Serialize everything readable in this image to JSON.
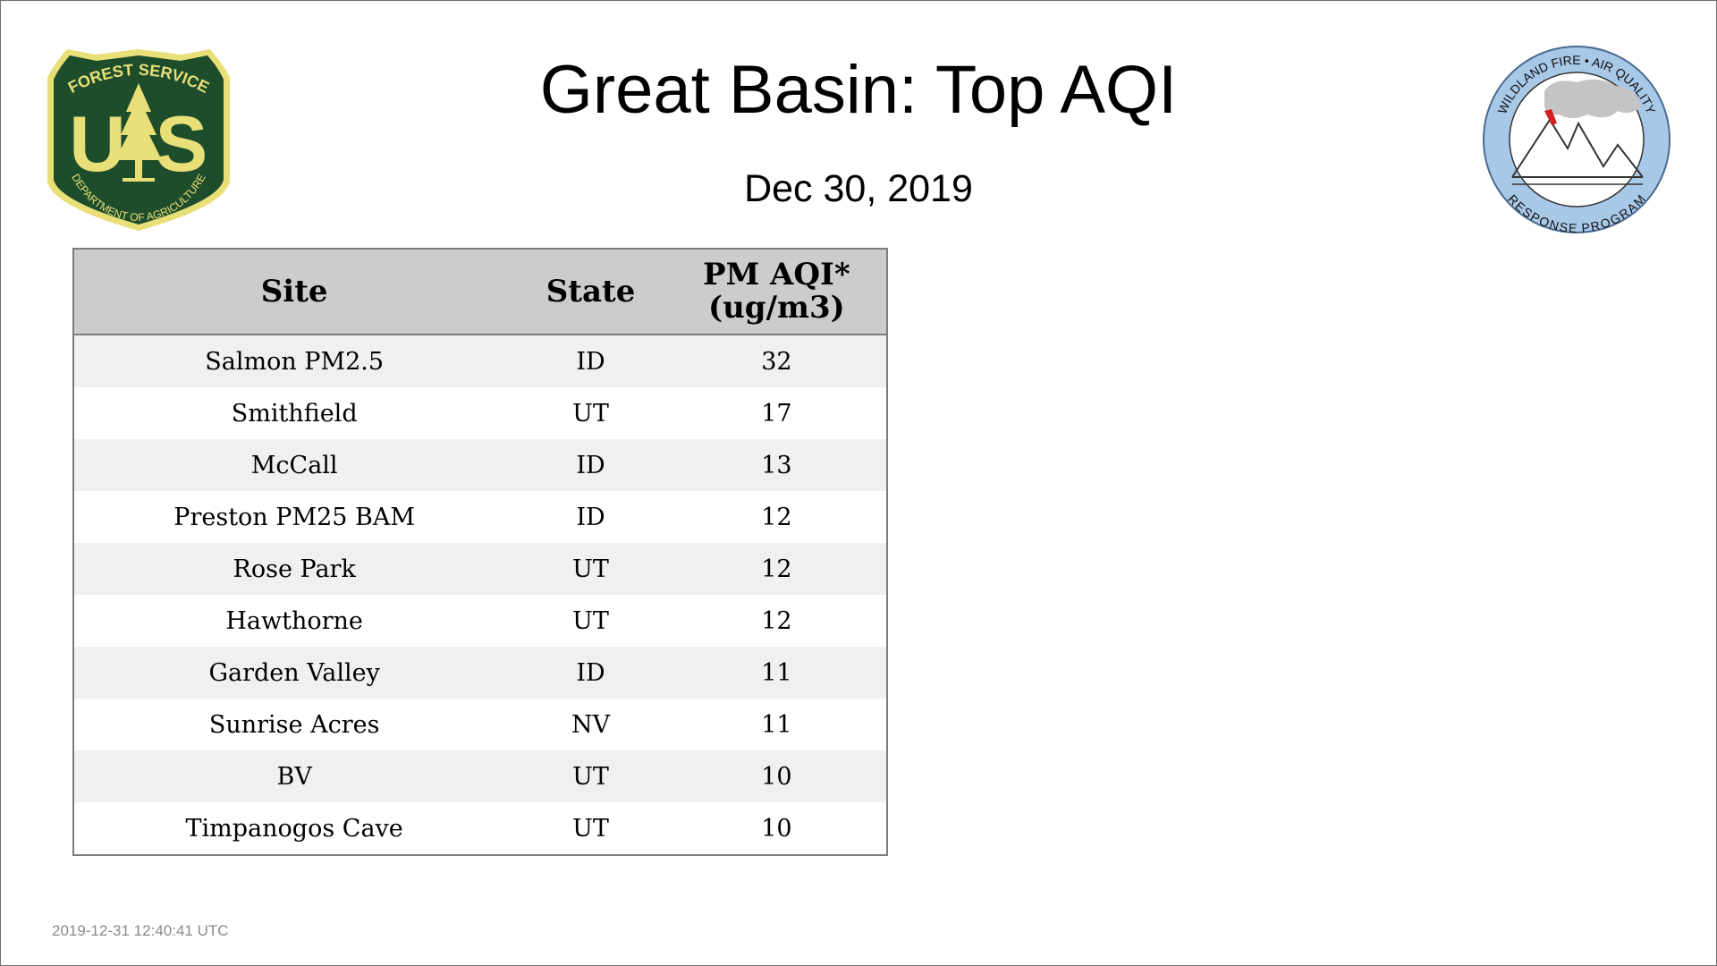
{
  "header": {
    "title": "Great Basin: Top AQI",
    "date": "Dec 30, 2019"
  },
  "logos": {
    "left": {
      "icon": "forest-service-shield-icon",
      "top_text": "FOREST SERVICE",
      "letters": "US",
      "bottom_text": "DEPARTMENT OF AGRICULTURE",
      "colors": {
        "green": "#1e4d2b",
        "gold": "#e8df78"
      }
    },
    "right": {
      "icon": "wildland-fire-air-quality-icon",
      "top_text": "WILDLAND FIRE • AIR QUALITY",
      "bottom_text": "RESPONSE PROGRAM",
      "colors": {
        "ring": "#a8c8e8",
        "smoke": "#c4c4c4",
        "fire": "#d42020"
      }
    }
  },
  "table": {
    "headers": {
      "site": "Site",
      "state": "State",
      "aqi_line1": "PM AQI*",
      "aqi_line2": "(ug/m3)"
    },
    "rows": [
      {
        "site": "Salmon PM2.5",
        "state": "ID",
        "aqi": "32"
      },
      {
        "site": "Smithfield",
        "state": "UT",
        "aqi": "17"
      },
      {
        "site": "McCall",
        "state": "ID",
        "aqi": "13"
      },
      {
        "site": "Preston PM25 BAM",
        "state": "ID",
        "aqi": "12"
      },
      {
        "site": "Rose Park",
        "state": "UT",
        "aqi": "12"
      },
      {
        "site": "Hawthorne",
        "state": "UT",
        "aqi": "12"
      },
      {
        "site": "Garden Valley",
        "state": "ID",
        "aqi": "11"
      },
      {
        "site": "Sunrise Acres",
        "state": "NV",
        "aqi": "11"
      },
      {
        "site": "BV",
        "state": "UT",
        "aqi": "10"
      },
      {
        "site": "Timpanogos Cave",
        "state": "UT",
        "aqi": "10"
      }
    ]
  },
  "footer": {
    "timestamp": "2019-12-31 12:40:41 UTC"
  }
}
